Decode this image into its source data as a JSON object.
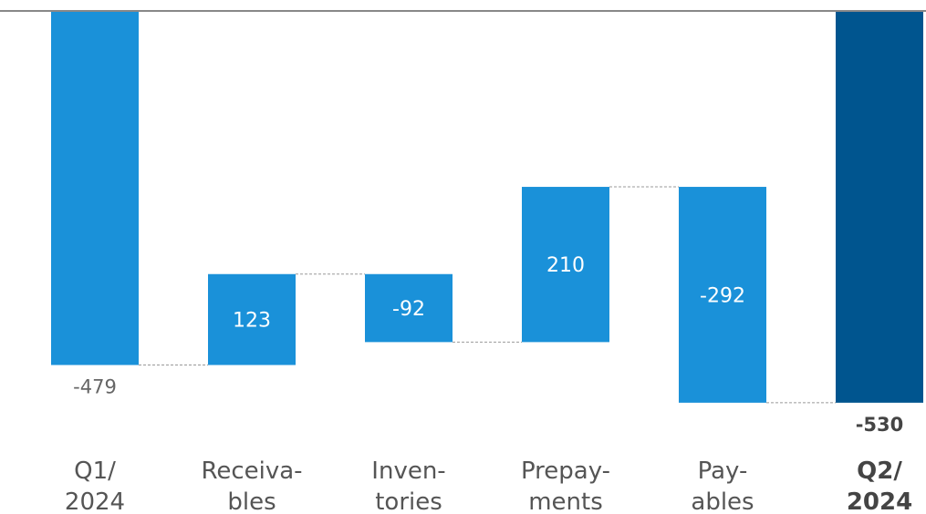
{
  "chart_data": {
    "type": "waterfall",
    "categories": [
      [
        "Q1/",
        "2024"
      ],
      [
        "Receiva-",
        "bles"
      ],
      [
        "Inven-",
        "tories"
      ],
      [
        "Prepay-",
        "ments"
      ],
      [
        "Pay-",
        "ables"
      ],
      [
        "Q2/",
        "2024"
      ]
    ],
    "values": [
      -479,
      123,
      -92,
      210,
      -292,
      -530
    ],
    "measures": [
      "total",
      "relative",
      "relative",
      "relative",
      "relative",
      "total"
    ],
    "colors": [
      "#1a91d9",
      "#1a91d9",
      "#1a91d9",
      "#1a91d9",
      "#1a91d9",
      "#00558f"
    ],
    "ylim": [
      -540,
      0
    ]
  }
}
